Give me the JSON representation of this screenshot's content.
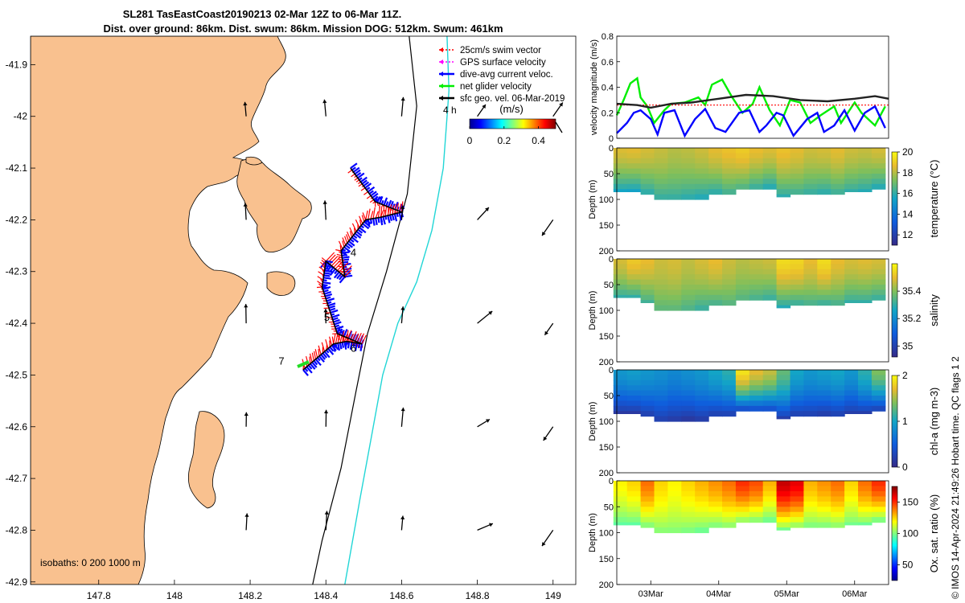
{
  "header": {
    "title_line1": "SL281 TasEastCoast20190213 02-Mar 12Z to 06-Mar 11Z.",
    "title_line2": "Dist. over ground: 86km. Dist. swum: 86km. Mission DOG: 512km. Swum: 461km"
  },
  "chart_data": [
    {
      "type": "map",
      "name": "glider-track-map",
      "xlim": [
        147.62,
        149.06
      ],
      "ylim": [
        -42.905,
        -41.845
      ],
      "xticks": [
        "147.8",
        "148",
        "148.2",
        "148.4",
        "148.6",
        "148.8",
        "149"
      ],
      "xtick_values": [
        147.8,
        148.0,
        148.2,
        148.4,
        148.6,
        148.8,
        149.0
      ],
      "yticks": [
        "-41.9",
        "-42",
        "-42.1",
        "-42.2",
        "-42.3",
        "-42.4",
        "-42.5",
        "-42.6",
        "-42.7",
        "-42.8",
        "-42.9"
      ],
      "ytick_values": [
        -41.9,
        -42.0,
        -42.1,
        -42.2,
        -42.3,
        -42.4,
        -42.5,
        -42.6,
        -42.7,
        -42.8,
        -42.9
      ],
      "legend": [
        {
          "label": "25cm/s swim vector",
          "color": "#ff0000",
          "style": "dashed"
        },
        {
          "label": "GPS surface velocity",
          "color": "#ff00ff",
          "style": "dashed"
        },
        {
          "label": "dive-avg current veloc.",
          "color": "#0000ff",
          "style": "solid"
        },
        {
          "label": "net glider velocity",
          "color": "#00ee00",
          "style": "solid"
        },
        {
          "label": "sfc geo. vel. 06-Mar-2019",
          "color": "#000000",
          "style": "solid"
        }
      ],
      "vector_scale_label": "4 h",
      "colorbar": {
        "label": "(m/s)",
        "ticks": [
          "0",
          "0.2",
          "0.4"
        ],
        "tick_values": [
          0,
          0.2,
          0.4
        ],
        "range": [
          0,
          0.5
        ]
      },
      "isobath_label": "isobaths: 0   200  1000 m",
      "day_labels": [
        {
          "text": "4",
          "lon": 148.465,
          "lat": -42.27
        },
        {
          "text": "5",
          "lon": 148.395,
          "lat": -42.395
        },
        {
          "text": "6",
          "lon": 148.465,
          "lat": -42.455
        },
        {
          "text": "7",
          "lon": 148.275,
          "lat": -42.48
        }
      ],
      "track": [
        [
          148.465,
          -42.1
        ],
        [
          148.53,
          -42.165
        ],
        [
          148.6,
          -42.185
        ],
        [
          148.545,
          -42.195
        ],
        [
          148.505,
          -42.2
        ],
        [
          148.44,
          -42.26
        ],
        [
          148.45,
          -42.31
        ],
        [
          148.4,
          -42.28
        ],
        [
          148.39,
          -42.33
        ],
        [
          148.43,
          -42.42
        ],
        [
          148.495,
          -42.44
        ],
        [
          148.455,
          -42.435
        ],
        [
          148.42,
          -42.44
        ],
        [
          148.34,
          -42.49
        ]
      ],
      "isobath_200": [
        [
          148.62,
          -41.845
        ],
        [
          148.64,
          -41.98
        ],
        [
          148.615,
          -42.15
        ],
        [
          148.56,
          -42.3
        ],
        [
          148.51,
          -42.42
        ],
        [
          148.48,
          -42.53
        ],
        [
          148.44,
          -42.68
        ],
        [
          148.39,
          -42.82
        ],
        [
          148.365,
          -42.905
        ]
      ],
      "isobath_1000": [
        [
          148.72,
          -41.845
        ],
        [
          148.725,
          -41.95
        ],
        [
          148.71,
          -42.1
        ],
        [
          148.68,
          -42.22
        ],
        [
          148.64,
          -42.32
        ],
        [
          148.59,
          -42.4
        ],
        [
          148.55,
          -42.5
        ],
        [
          148.52,
          -42.62
        ],
        [
          148.49,
          -42.74
        ],
        [
          148.45,
          -42.905
        ]
      ],
      "coast_labels": []
    },
    {
      "type": "line",
      "name": "velocity-magnitude",
      "ylabel": "velocity magnitude (m/s)",
      "ylim": [
        0,
        0.8
      ],
      "yticks": [
        "0",
        "0.2",
        "0.4",
        "0.6",
        "0.8"
      ],
      "tick_values": [
        0,
        0.2,
        0.4,
        0.6,
        0.8
      ],
      "xlim_days": [
        2.5,
        6.5
      ],
      "series": [
        {
          "name": "net glider velocity",
          "color": "#00ee00",
          "x": [
            2.5,
            2.6,
            2.7,
            2.8,
            2.85,
            2.95,
            3.05,
            3.2,
            3.3,
            3.5,
            3.7,
            3.8,
            3.9,
            4.05,
            4.2,
            4.35,
            4.5,
            4.6,
            4.75,
            4.9,
            5.05,
            5.2,
            5.35,
            5.5,
            5.7,
            5.8,
            6.0,
            6.1,
            6.3,
            6.45
          ],
          "y": [
            0.18,
            0.3,
            0.43,
            0.47,
            0.32,
            0.25,
            0.12,
            0.22,
            0.27,
            0.28,
            0.32,
            0.26,
            0.42,
            0.46,
            0.32,
            0.2,
            0.27,
            0.4,
            0.22,
            0.1,
            0.3,
            0.28,
            0.12,
            0.18,
            0.25,
            0.12,
            0.28,
            0.2,
            0.1,
            0.25
          ]
        },
        {
          "name": "dive-avg current veloc.",
          "color": "#0000ff",
          "x": [
            2.5,
            2.65,
            2.75,
            2.85,
            3.0,
            3.1,
            3.2,
            3.35,
            3.5,
            3.65,
            3.8,
            3.95,
            4.1,
            4.3,
            4.45,
            4.6,
            4.7,
            4.85,
            4.95,
            5.1,
            5.3,
            5.45,
            5.55,
            5.7,
            5.85,
            6.0,
            6.15,
            6.3,
            6.45
          ],
          "y": [
            0.04,
            0.12,
            0.2,
            0.22,
            0.15,
            0.03,
            0.2,
            0.22,
            0.02,
            0.15,
            0.23,
            0.08,
            0.05,
            0.2,
            0.22,
            0.05,
            0.1,
            0.2,
            0.18,
            0.02,
            0.15,
            0.2,
            0.05,
            0.1,
            0.22,
            0.06,
            0.2,
            0.25,
            0.08
          ]
        },
        {
          "name": "25cm/s swim vector",
          "color": "#ff0000",
          "style": "dashed",
          "x": [
            2.5,
            6.5
          ],
          "y": [
            0.26,
            0.26
          ]
        },
        {
          "name": "sfc geo. vel.",
          "color": "#222222",
          "x": [
            2.5,
            2.8,
            3.0,
            3.3,
            3.6,
            4.0,
            4.4,
            4.8,
            5.2,
            5.6,
            6.0,
            6.3,
            6.5
          ],
          "y": [
            0.27,
            0.26,
            0.24,
            0.27,
            0.28,
            0.31,
            0.34,
            0.33,
            0.3,
            0.29,
            0.31,
            0.33,
            0.31
          ]
        }
      ]
    },
    {
      "type": "heatmap",
      "name": "temperature-section",
      "ylabel": "Depth (m)",
      "ylim": [
        0,
        200
      ],
      "yticks": [
        "0",
        "50",
        "100",
        "150",
        "200"
      ],
      "colorbar": {
        "label": "temperature (°C)",
        "ticks": [
          "12",
          "14",
          "16",
          "18",
          "20"
        ],
        "tick_values": [
          12,
          14,
          16,
          18,
          20
        ],
        "range": [
          11,
          20
        ]
      },
      "days": [
        2.55,
        2.75,
        2.95,
        3.15,
        3.35,
        3.55,
        3.75,
        3.95,
        4.15,
        4.35,
        4.55,
        4.75,
        4.95,
        5.15,
        5.35,
        5.55,
        5.75,
        5.95,
        6.15,
        6.35
      ],
      "depths": [
        5,
        15,
        25,
        35,
        45,
        55,
        65,
        75,
        85,
        95
      ],
      "max_depth": [
        85,
        85,
        90,
        100,
        100,
        100,
        100,
        90,
        90,
        80,
        80,
        80,
        95,
        90,
        90,
        90,
        90,
        85,
        85,
        80
      ],
      "surface_value": [
        18.5,
        18.6,
        18.4,
        18.2,
        18.0,
        18.1,
        18.3,
        18.6,
        18.8,
        19.0,
        18.7,
        18.5,
        18.8,
        18.6,
        18.3,
        18.4,
        18.6,
        18.3,
        18.2,
        18.4
      ],
      "bottom_value": [
        15.5,
        15.4,
        15.8,
        16.0,
        16.0,
        15.8,
        15.6,
        15.8,
        16.2,
        16.4,
        16.0,
        15.6,
        15.9,
        16.2,
        16.0,
        15.8,
        16.1,
        16.0,
        15.8,
        15.6
      ]
    },
    {
      "type": "heatmap",
      "name": "salinity-section",
      "ylabel": "Depth (m)",
      "ylim": [
        0,
        200
      ],
      "yticks": [
        "0",
        "50",
        "100",
        "150",
        "200"
      ],
      "colorbar": {
        "label": "salinity",
        "ticks": [
          "35",
          "35.2",
          "35.4"
        ],
        "tick_values": [
          35.0,
          35.2,
          35.4
        ],
        "range": [
          34.92,
          35.6
        ]
      },
      "days": [
        2.55,
        2.75,
        2.95,
        3.15,
        3.35,
        3.55,
        3.75,
        3.95,
        4.15,
        4.35,
        4.55,
        4.75,
        4.95,
        5.15,
        5.35,
        5.55,
        5.75,
        5.95,
        6.15,
        6.35
      ],
      "depths": [
        5,
        15,
        25,
        35,
        45,
        55,
        65,
        75,
        85,
        95
      ],
      "max_depth": [
        75,
        75,
        85,
        100,
        100,
        100,
        100,
        90,
        90,
        80,
        80,
        80,
        95,
        90,
        90,
        90,
        90,
        85,
        85,
        80
      ],
      "surface_value": [
        35.48,
        35.52,
        35.5,
        35.47,
        35.48,
        35.46,
        35.48,
        35.5,
        35.47,
        35.45,
        35.46,
        35.47,
        35.55,
        35.54,
        35.5,
        35.55,
        35.5,
        35.48,
        35.49,
        35.48
      ],
      "bottom_value": [
        35.3,
        35.3,
        35.32,
        35.35,
        35.35,
        35.33,
        35.3,
        35.32,
        35.34,
        35.34,
        35.32,
        35.3,
        35.28,
        35.3,
        35.32,
        35.3,
        35.32,
        35.3,
        35.3,
        35.3
      ]
    },
    {
      "type": "heatmap",
      "name": "chlorophyll-section",
      "ylabel": "Depth (m)",
      "ylim": [
        0,
        200
      ],
      "yticks": [
        "0",
        "50",
        "100",
        "150",
        "200"
      ],
      "colorbar": {
        "label": "chl-a (mg m-3)",
        "ticks": [
          "0",
          "1",
          "2"
        ],
        "tick_values": [
          0,
          1,
          2
        ],
        "range": [
          0,
          2
        ]
      },
      "days": [
        2.55,
        2.75,
        2.95,
        3.15,
        3.35,
        3.55,
        3.75,
        3.95,
        4.15,
        4.35,
        4.55,
        4.75,
        4.95,
        5.15,
        5.35,
        5.55,
        5.75,
        5.95,
        6.15,
        6.35
      ],
      "depths": [
        5,
        15,
        25,
        35,
        45,
        55,
        65,
        75,
        85,
        95
      ],
      "max_depth": [
        85,
        85,
        90,
        100,
        100,
        100,
        100,
        90,
        90,
        80,
        80,
        80,
        95,
        90,
        90,
        90,
        90,
        85,
        85,
        80
      ],
      "surface_value": [
        0.9,
        0.95,
        0.9,
        0.85,
        0.8,
        0.85,
        0.9,
        1.0,
        1.1,
        1.9,
        1.7,
        1.6,
        1.3,
        1.0,
        0.9,
        0.95,
        1.0,
        0.9,
        1.1,
        1.4
      ],
      "bottom_value": [
        0.15,
        0.15,
        0.2,
        0.2,
        0.15,
        0.1,
        0.15,
        0.2,
        0.2,
        0.25,
        0.3,
        0.3,
        0.2,
        0.2,
        0.2,
        0.15,
        0.2,
        0.2,
        0.2,
        0.2
      ]
    },
    {
      "type": "heatmap",
      "name": "oxygen-section",
      "ylabel": "Depth (m)",
      "ylim": [
        0,
        200
      ],
      "yticks": [
        "0",
        "50",
        "100",
        "150",
        "200"
      ],
      "colorbar": {
        "label": "Ox. sat. ratio (%)",
        "ticks": [
          "50",
          "100",
          "150"
        ],
        "tick_values": [
          50,
          100,
          150
        ],
        "range": [
          25,
          175
        ]
      },
      "days": [
        2.55,
        2.75,
        2.95,
        3.15,
        3.35,
        3.55,
        3.75,
        3.95,
        4.15,
        4.35,
        4.55,
        4.75,
        4.95,
        5.15,
        5.35,
        5.55,
        5.75,
        5.95,
        6.15,
        6.35
      ],
      "depths": [
        5,
        15,
        25,
        35,
        45,
        55,
        65,
        75,
        85,
        95
      ],
      "max_depth": [
        85,
        85,
        90,
        100,
        100,
        100,
        100,
        90,
        90,
        80,
        80,
        80,
        95,
        90,
        90,
        90,
        90,
        85,
        85,
        80
      ],
      "surface_value": [
        120,
        125,
        140,
        125,
        120,
        125,
        130,
        135,
        140,
        150,
        145,
        130,
        165,
        160,
        130,
        135,
        140,
        125,
        140,
        150
      ],
      "bottom_value": [
        95,
        95,
        98,
        100,
        100,
        98,
        95,
        98,
        100,
        100,
        98,
        95,
        98,
        100,
        98,
        98,
        100,
        98,
        97,
        95
      ]
    }
  ],
  "time_axis": {
    "ticks": [
      "03Mar",
      "04Mar",
      "05Mar",
      "06Mar"
    ],
    "tick_values": [
      3,
      4,
      5,
      6
    ]
  },
  "footer": {
    "credit": "© IMOS 14-Apr-2024 21:49:26 Hobart time. QC flags 1  2"
  }
}
